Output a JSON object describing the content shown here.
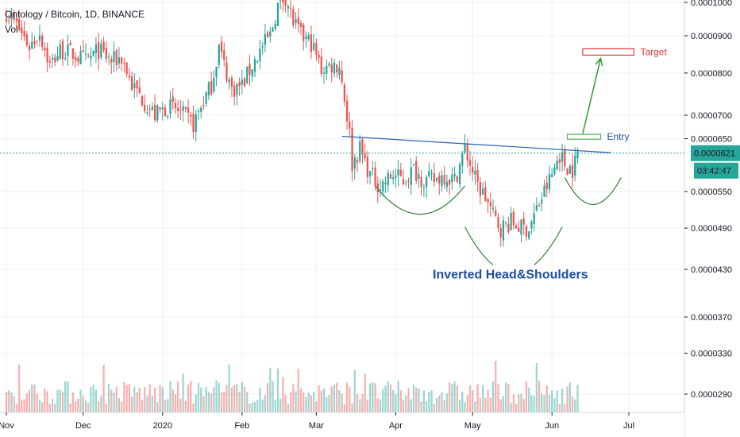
{
  "header": {
    "symbol_line": "Ontology / Bitcoin, 1D, BINANCE",
    "vol_label": "Vol"
  },
  "price_badge": {
    "price": "0.0000621",
    "countdown": "03:42:47",
    "color": "#26a69a"
  },
  "annotations": {
    "target_label": "Target",
    "entry_label": "Entry",
    "pattern_label": "Inverted Head&Shoulders"
  },
  "colors": {
    "up": "#26a69a",
    "down": "#ef5350",
    "neckline": "#2f5fb3",
    "arrow": "#2ca02c",
    "curve": "#2e7d32",
    "current_line": "#26a69a",
    "target": "#e53935",
    "entry": "#4caf50",
    "label_blue": "#1e4fa3"
  },
  "chart_data": {
    "type": "candlestick",
    "title": "Ontology / Bitcoin, 1D, BINANCE",
    "y_axis": {
      "ticks": [
        "0.0001000",
        "0.0000900",
        "0.0000800",
        "0.0000700",
        "0.0000650",
        "0.0000550",
        "0.0000490",
        "0.0000430",
        "0.0000370",
        "0.0000330",
        "0.0000290"
      ],
      "tick_values": [
        0.0001,
        9e-05,
        8e-05,
        7e-05,
        6.5e-05,
        5.5e-05,
        4.9e-05,
        4.3e-05,
        3.7e-05,
        3.3e-05,
        2.9e-05
      ],
      "scale": "log"
    },
    "x_axis": {
      "ticks": [
        "Nov",
        "Dec",
        "2020",
        "Feb",
        "Mar",
        "Apr",
        "May",
        "Jun",
        "Jul"
      ],
      "tick_dates": [
        "2019-11-01",
        "2019-12-01",
        "2020-01-01",
        "2020-02-01",
        "2020-03-01",
        "2020-04-01",
        "2020-05-01",
        "2020-06-01",
        "2020-07-01"
      ]
    },
    "close_path": [
      [
        "2019-11-01",
        9.7e-05
      ],
      [
        "2019-11-05",
        9.3e-05
      ],
      [
        "2019-11-10",
        8.7e-05
      ],
      [
        "2019-11-14",
        9.1e-05
      ],
      [
        "2019-11-18",
        8.2e-05
      ],
      [
        "2019-11-22",
        8.6e-05
      ],
      [
        "2019-11-27",
        8.5e-05
      ],
      [
        "2019-12-02",
        8.3e-05
      ],
      [
        "2019-12-07",
        8.6e-05
      ],
      [
        "2019-12-12",
        8.3e-05
      ],
      [
        "2019-12-16",
        8.4e-05
      ],
      [
        "2019-12-20",
        7.7e-05
      ],
      [
        "2019-12-25",
        7.3e-05
      ],
      [
        "2019-12-29",
        7e-05
      ],
      [
        "2020-01-03",
        7.2e-05
      ],
      [
        "2020-01-07",
        7.1e-05
      ],
      [
        "2020-01-11",
        6.9e-05
      ],
      [
        "2020-01-13",
        6.8e-05
      ],
      [
        "2020-01-16",
        7.2e-05
      ],
      [
        "2020-01-20",
        7.7e-05
      ],
      [
        "2020-01-23",
        8.7e-05
      ],
      [
        "2020-01-25",
        8.2e-05
      ],
      [
        "2020-01-28",
        7.6e-05
      ],
      [
        "2020-02-01",
        7.7e-05
      ],
      [
        "2020-02-05",
        8.2e-05
      ],
      [
        "2020-02-09",
        8.7e-05
      ],
      [
        "2020-02-12",
        9e-05
      ],
      [
        "2020-02-15",
        9.9e-05
      ],
      [
        "2020-02-18",
        0.000102
      ],
      [
        "2020-02-21",
        9.4e-05
      ],
      [
        "2020-02-24",
        9e-05
      ],
      [
        "2020-02-28",
        8.8e-05
      ],
      [
        "2020-03-03",
        8.1e-05
      ],
      [
        "2020-03-07",
        8.2e-05
      ],
      [
        "2020-03-10",
        8.2e-05
      ],
      [
        "2020-03-12",
        7.4e-05
      ],
      [
        "2020-03-14",
        6.6e-05
      ],
      [
        "2020-03-15",
        6e-05
      ],
      [
        "2020-03-18",
        6.3e-05
      ],
      [
        "2020-03-22",
        5.8e-05
      ],
      [
        "2020-03-26",
        5.6e-05
      ],
      [
        "2020-03-31",
        5.8e-05
      ],
      [
        "2020-04-04",
        5.7e-05
      ],
      [
        "2020-04-08",
        5.9e-05
      ],
      [
        "2020-04-12",
        5.7e-05
      ],
      [
        "2020-04-16",
        5.7e-05
      ],
      [
        "2020-04-20",
        5.8e-05
      ],
      [
        "2020-04-24",
        5.7e-05
      ],
      [
        "2020-04-28",
        6.3e-05
      ],
      [
        "2020-04-30",
        6e-05
      ],
      [
        "2020-05-03",
        5.6e-05
      ],
      [
        "2020-05-06",
        5.4e-05
      ],
      [
        "2020-05-09",
        5.1e-05
      ],
      [
        "2020-05-12",
        4.9e-05
      ],
      [
        "2020-05-16",
        5e-05
      ],
      [
        "2020-05-20",
        4.9e-05
      ],
      [
        "2020-05-23",
        4.9e-05
      ],
      [
        "2020-05-26",
        5.2e-05
      ],
      [
        "2020-05-29",
        5.5e-05
      ],
      [
        "2020-06-01",
        5.8e-05
      ],
      [
        "2020-06-04",
        6.2e-05
      ],
      [
        "2020-06-06",
        6e-05
      ],
      [
        "2020-06-09",
        5.9e-05
      ],
      [
        "2020-06-11",
        6.2e-05
      ]
    ],
    "volume_bars": "shown along the bottom; green = up day, red = down day",
    "current_price": 6.21e-05,
    "annotations": {
      "neckline": {
        "from": [
          "2020-03-11",
          6.55e-05
        ],
        "to": [
          "2020-06-24",
          6.22e-05
        ]
      },
      "entry": 6.54e-05,
      "target": 8.55e-05,
      "shoulders_and_head": [
        "left shoulder (Apr)",
        "head (May)",
        "right shoulder (Jun)"
      ]
    }
  }
}
